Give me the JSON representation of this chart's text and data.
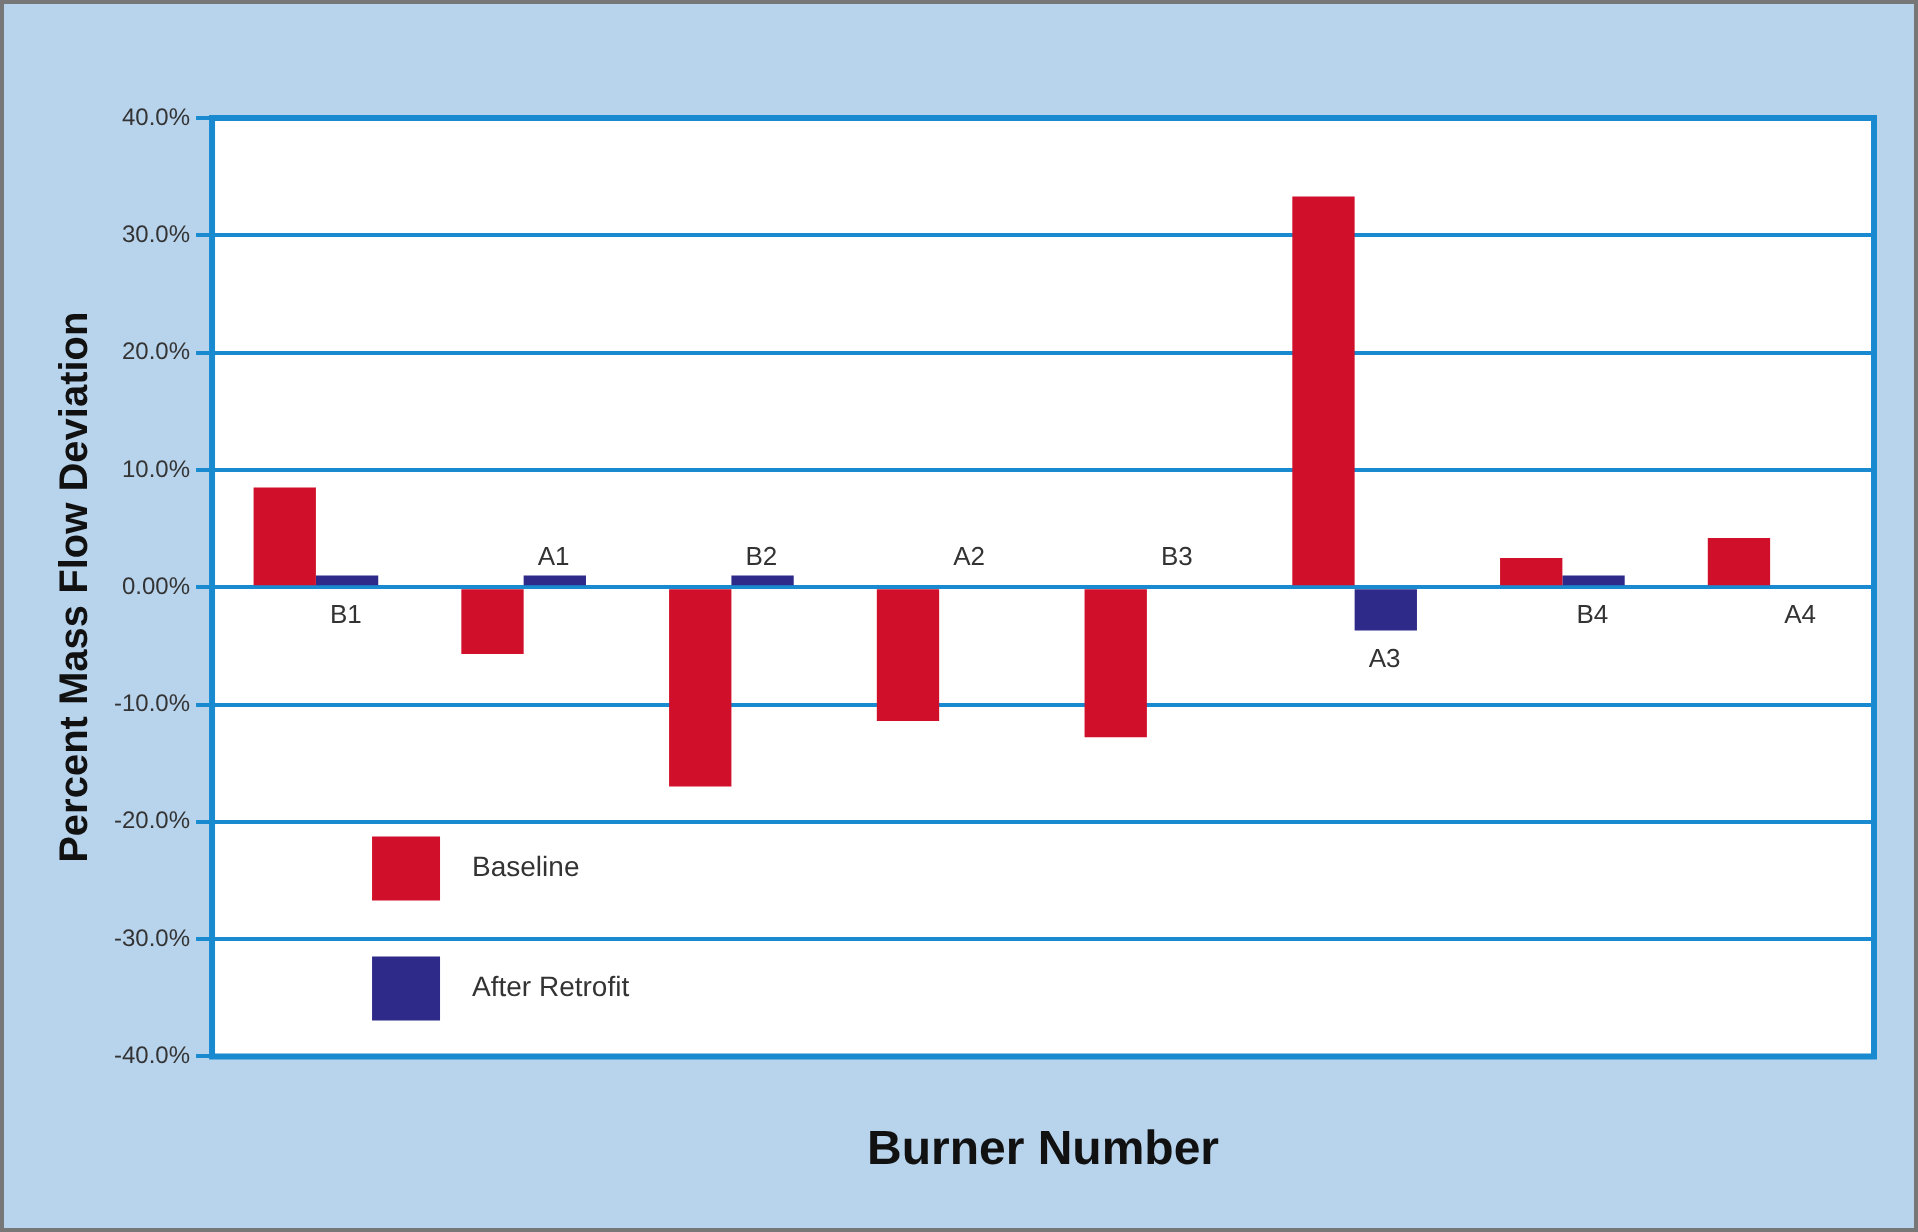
{
  "chart_data": {
    "type": "bar",
    "xlabel": "Burner Number",
    "ylabel": "Percent Mass Flow Deviation",
    "categories": [
      "B1",
      "A1",
      "B2",
      "A2",
      "B3",
      "A3",
      "B4",
      "A4"
    ],
    "series": [
      {
        "name": "Baseline",
        "color": "#d0102a",
        "values": [
          8.5,
          -5.7,
          -17,
          -11.4,
          -12.8,
          33.3,
          2.5,
          4.2
        ]
      },
      {
        "name": "After Retrofit",
        "color": "#2e2a8a",
        "values": [
          1,
          1,
          1,
          null,
          null,
          -3.7,
          1,
          null
        ]
      }
    ],
    "ylim": [
      -40,
      40
    ],
    "yticks": [
      {
        "value": 40,
        "label": "40.0%"
      },
      {
        "value": 30,
        "label": "30.0%"
      },
      {
        "value": 20,
        "label": "20.0%"
      },
      {
        "value": 10,
        "label": "10.0%"
      },
      {
        "value": 0,
        "label": "0.00%"
      },
      {
        "value": -10,
        "label": "-10.0%"
      },
      {
        "value": -20,
        "label": "-20.0%"
      },
      {
        "value": -30,
        "label": "-30.0%"
      },
      {
        "value": -40,
        "label": "-40.0%"
      }
    ],
    "grid": "y",
    "legend": "bottom left",
    "tick_labels": "y"
  }
}
